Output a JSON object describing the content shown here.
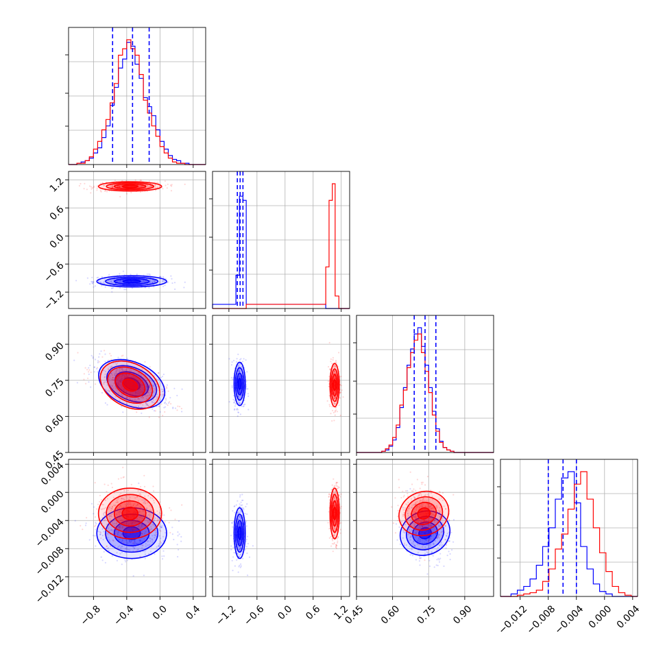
{
  "chart_data": {
    "type": "corner",
    "colors": {
      "blue": "#0000ff",
      "red": "#ff0000"
    },
    "grid": true,
    "params": [
      {
        "range": [
          -1.1,
          0.55
        ],
        "ticks": [
          -0.8,
          -0.4,
          0.0,
          0.4
        ],
        "tick_labels": [
          "−0.8",
          "−0.4",
          "0.0",
          "0.4"
        ]
      },
      {
        "range": [
          -1.55,
          1.38
        ],
        "ticks": [
          -1.2,
          -0.6,
          0.0,
          0.6,
          1.2
        ],
        "tick_labels": [
          "−1.2",
          "−0.6",
          "0.0",
          "0.6",
          "1.2"
        ]
      },
      {
        "range": [
          0.45,
          1.02
        ],
        "ticks": [
          0.45,
          0.6,
          0.75,
          0.9
        ],
        "tick_labels": [
          "0.45",
          "0.60",
          "0.75",
          "0.90"
        ]
      },
      {
        "range": [
          -0.0148,
          0.0047
        ],
        "ticks": [
          -0.012,
          -0.008,
          -0.004,
          0.0,
          0.004
        ],
        "tick_labels": [
          "−0.012",
          "−0.008",
          "−0.004",
          "0.000",
          "0.004"
        ]
      }
    ],
    "series": [
      {
        "color": "blue",
        "mean": [
          -0.34,
          -0.97,
          0.735,
          -0.0058
        ],
        "std": [
          0.21,
          0.06,
          0.045,
          0.0018
        ]
      },
      {
        "color": "red",
        "mean": [
          -0.36,
          1.06,
          0.73,
          -0.003
        ],
        "std": [
          0.19,
          0.05,
          0.045,
          0.0018
        ]
      }
    ],
    "diag": [
      {
        "bins": [
          -1.1,
          -1.0,
          -0.95,
          -0.9,
          -0.85,
          -0.8,
          -0.75,
          -0.7,
          -0.65,
          -0.6,
          -0.55,
          -0.5,
          -0.45,
          -0.4,
          -0.35,
          -0.3,
          -0.25,
          -0.2,
          -0.15,
          -0.1,
          -0.05,
          0.0,
          0.05,
          0.1,
          0.15,
          0.2,
          0.25,
          0.3,
          0.35,
          0.4,
          0.45,
          0.55
        ],
        "blue": [
          0,
          1,
          2,
          3,
          5,
          9,
          13,
          21,
          30,
          46,
          60,
          75,
          82,
          95,
          92,
          78,
          67,
          52,
          45,
          38,
          27,
          18,
          12,
          7,
          4,
          3,
          1,
          1,
          0,
          0,
          0
        ],
        "red": [
          0,
          1,
          1,
          3,
          6,
          12,
          18,
          27,
          35,
          48,
          63,
          85,
          90,
          97,
          90,
          85,
          70,
          50,
          40,
          30,
          22,
          14,
          9,
          5,
          2,
          1,
          1,
          0,
          0,
          0,
          0
        ],
        "quantiles": [
          -0.57,
          -0.33,
          -0.13
        ]
      },
      {
        "bins": [
          -1.55,
          -1.05,
          -0.975,
          -0.9,
          -0.83,
          0.87,
          0.94,
          1.01,
          1.07,
          1.15,
          1.38
        ],
        "blue": [
          2,
          16,
          54,
          52,
          2,
          0,
          0,
          0,
          0,
          0
        ],
        "red": [
          0,
          0,
          0,
          0,
          2,
          20,
          52,
          60,
          6,
          0
        ],
        "quantiles": [
          -1.02,
          -0.96,
          -0.9
        ]
      },
      {
        "bins": [
          0.45,
          0.555,
          0.57,
          0.585,
          0.6,
          0.615,
          0.63,
          0.645,
          0.66,
          0.675,
          0.69,
          0.705,
          0.72,
          0.735,
          0.75,
          0.765,
          0.78,
          0.795,
          0.81,
          0.825,
          0.84,
          0.855,
          0.87,
          0.885,
          1.02
        ],
        "blue": [
          0,
          1,
          2,
          5,
          10,
          20,
          36,
          52,
          70,
          83,
          95,
          100,
          85,
          70,
          52,
          33,
          19,
          9,
          4,
          2,
          1,
          0,
          0,
          0
        ],
        "red": [
          0,
          1,
          3,
          6,
          12,
          22,
          38,
          50,
          68,
          80,
          90,
          95,
          80,
          65,
          48,
          30,
          17,
          8,
          4,
          2,
          1,
          0,
          0,
          0
        ],
        "quantiles": [
          0.69,
          0.735,
          0.78
        ]
      },
      {
        "bins": [
          -0.0148,
          -0.0133,
          -0.0124,
          -0.0115,
          -0.0106,
          -0.0097,
          -0.0088,
          -0.0079,
          -0.007,
          -0.0061,
          -0.0052,
          -0.0043,
          -0.0034,
          -0.0025,
          -0.0016,
          -0.0007,
          0.0002,
          0.0011,
          0.002,
          0.0029,
          0.0038,
          0.0047
        ],
        "blue": [
          0,
          2,
          5,
          8,
          14,
          25,
          40,
          55,
          78,
          95,
          100,
          75,
          40,
          22,
          10,
          4,
          2,
          0,
          0,
          0,
          0
        ],
        "red": [
          0,
          0,
          1,
          2,
          3,
          5,
          12,
          22,
          38,
          50,
          70,
          90,
          100,
          78,
          55,
          35,
          20,
          8,
          3,
          1,
          0
        ],
        "quantiles": [
          -0.008,
          -0.0059,
          -0.004
        ]
      }
    ]
  }
}
